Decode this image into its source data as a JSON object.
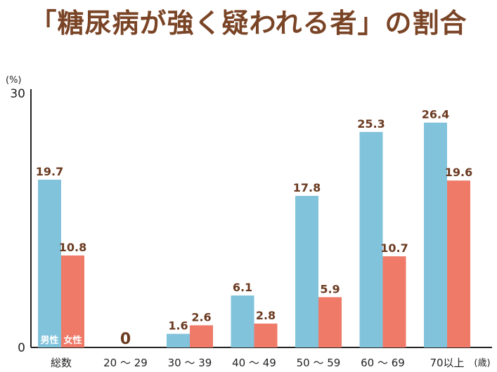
{
  "chart_data": {
    "type": "bar",
    "title": "「糖尿病が強く疑われる者」の割合",
    "y_unit": "(%)",
    "x_unit": "(歳)",
    "ylim": [
      0,
      30
    ],
    "y_ticks": [
      "0",
      "30"
    ],
    "categories": [
      "総数",
      "20 〜 29",
      "30 〜 39",
      "40 〜 49",
      "50 〜 59",
      "60 〜 69",
      "70以上"
    ],
    "series": [
      {
        "name": "男性",
        "color": "#82c3dc",
        "values": [
          19.7,
          0,
          1.6,
          6.1,
          17.8,
          25.3,
          26.4
        ],
        "labels": [
          "19.7",
          "0",
          "1.6",
          "6.1",
          "17.8",
          "25.3",
          "26.4"
        ]
      },
      {
        "name": "女性",
        "color": "#f07a68",
        "values": [
          10.8,
          0,
          2.6,
          2.8,
          5.9,
          10.7,
          19.6
        ],
        "labels": [
          "10.8",
          "",
          "2.6",
          "2.8",
          "5.9",
          "10.7",
          "19.6"
        ]
      }
    ],
    "grid": false,
    "legend_placement": "inside-first-bars-bottom"
  }
}
